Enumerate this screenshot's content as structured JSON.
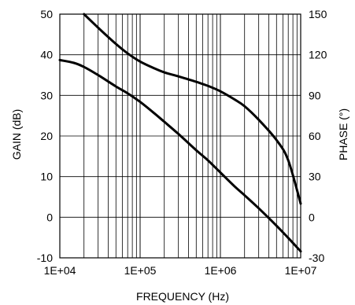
{
  "chart_data": {
    "type": "line",
    "x_scale": "log",
    "xlabel": "FREQUENCY (Hz)",
    "ylabel_left": "GAIN (dB)",
    "ylabel_right": "PHASE (°)",
    "xlim": [
      10000,
      10000000
    ],
    "ylim_left": [
      -10,
      50
    ],
    "ylim_right": [
      -30,
      150
    ],
    "x_ticks": [
      {
        "value": 10000,
        "label": "1E+04"
      },
      {
        "value": 100000,
        "label": "1E+05"
      },
      {
        "value": 1000000,
        "label": "1E+06"
      },
      {
        "value": 10000000,
        "label": "1E+07"
      }
    ],
    "y_ticks_left": [
      {
        "value": 50,
        "label": "50"
      },
      {
        "value": 40,
        "label": "40"
      },
      {
        "value": 30,
        "label": "30"
      },
      {
        "value": 20,
        "label": "20"
      },
      {
        "value": 10,
        "label": "10"
      },
      {
        "value": 0,
        "label": "0"
      },
      {
        "value": -10,
        "label": "-10"
      }
    ],
    "y_ticks_right": [
      {
        "value": 150,
        "label": "150"
      },
      {
        "value": 120,
        "label": "120"
      },
      {
        "value": 90,
        "label": "90"
      },
      {
        "value": 60,
        "label": "60"
      },
      {
        "value": 30,
        "label": "30"
      },
      {
        "value": 0,
        "label": "0"
      },
      {
        "value": -30,
        "label": "-30"
      }
    ],
    "grid": true,
    "line_color": "#000000",
    "series": [
      {
        "axis": "left",
        "x": [
          10000,
          15000,
          20000,
          30000,
          50000,
          70000,
          100000,
          150000,
          200000,
          300000,
          500000,
          700000,
          1000000,
          1500000,
          2000000,
          3000000,
          5000000,
          7000000,
          10000000
        ],
        "values": [
          38.7,
          38.0,
          37.0,
          35.0,
          32.2,
          30.5,
          28.4,
          25.6,
          23.5,
          20.5,
          16.5,
          14.0,
          11.0,
          7.6,
          5.4,
          2.2,
          -2.1,
          -5.1,
          -8.4
        ]
      },
      {
        "axis": "right",
        "x": [
          20000,
          30000,
          50000,
          70000,
          100000,
          150000,
          200000,
          300000,
          500000,
          700000,
          1000000,
          1500000,
          2000000,
          3000000,
          5000000,
          7000000,
          10000000
        ],
        "values": [
          150,
          140,
          128,
          121,
          115,
          110,
          107,
          104,
          100,
          97,
          93,
          87,
          82,
          72,
          57,
          42,
          10
        ]
      }
    ]
  }
}
